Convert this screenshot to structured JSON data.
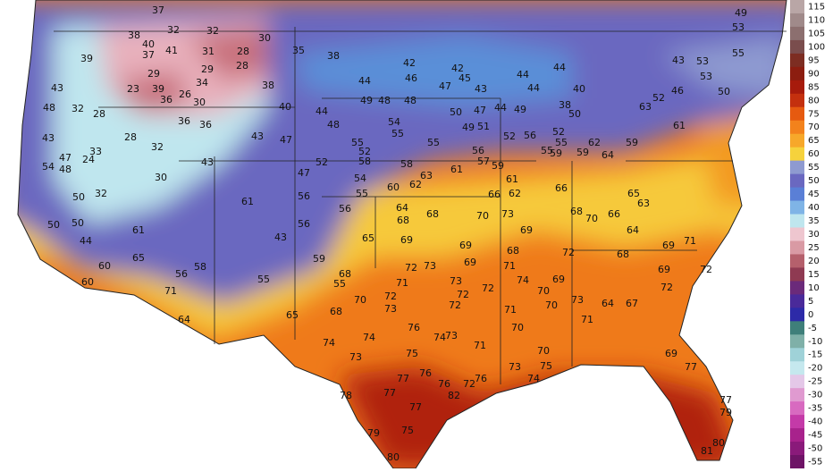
{
  "stations": [
    37,
    38,
    40,
    32,
    32,
    30,
    35,
    37,
    41,
    31,
    28,
    39,
    29,
    29,
    28,
    23,
    39,
    26,
    34,
    36,
    30,
    38,
    43,
    32,
    28,
    48,
    36,
    36,
    40,
    43,
    47,
    28,
    32,
    43,
    47,
    24,
    33,
    54,
    48,
    30,
    43,
    52,
    47,
    50,
    32,
    50,
    50,
    44,
    61,
    43,
    61,
    56,
    56,
    55,
    56,
    65,
    69,
    59,
    60,
    60,
    65,
    71,
    56,
    58,
    55,
    64,
    65,
    68,
    55,
    68,
    70,
    72,
    71,
    72,
    73,
    69,
    69,
    68,
    71,
    74,
    73,
    72,
    72,
    72,
    71,
    70,
    69,
    72,
    73,
    71,
    70,
    73,
    74,
    74,
    76,
    74,
    73,
    71,
    73,
    75,
    76,
    76,
    72,
    73,
    75,
    74,
    70,
    70,
    78,
    77,
    77,
    76,
    82,
    77,
    75,
    79,
    80,
    68,
    64,
    67,
    72,
    69,
    69,
    71,
    72,
    69,
    77,
    77,
    79,
    80,
    81,
    70,
    66,
    63,
    64,
    65,
    66,
    61,
    62,
    66,
    70,
    73,
    69,
    68,
    64,
    68,
    68,
    60,
    62,
    58,
    63,
    61,
    57,
    59,
    56,
    55,
    55,
    54,
    48,
    49,
    48,
    47,
    50,
    47,
    44,
    49,
    49,
    51,
    52,
    56,
    55,
    59,
    59,
    62,
    64,
    59,
    61,
    63,
    52,
    53,
    50,
    49,
    53,
    43,
    53,
    55,
    46,
    42,
    46,
    42,
    45,
    43,
    44,
    44,
    44,
    40,
    38,
    50,
    52,
    55,
    44,
    44,
    48,
    55,
    54,
    58,
    52,
    38
  ],
  "legend": {
    "ticks": [
      115,
      110,
      105,
      100,
      95,
      90,
      85,
      80,
      75,
      70,
      65,
      60,
      55,
      50,
      45,
      40,
      35,
      30,
      25,
      20,
      15,
      10,
      5,
      0,
      -5,
      -10,
      -15,
      -20,
      -25,
      -30,
      -35,
      -40,
      -45,
      -50,
      -55
    ],
    "colors": [
      "#b9a6a6",
      "#a08a8a",
      "#8c6f6f",
      "#7a4d4d",
      "#7d2d22",
      "#8c1d10",
      "#a71b0c",
      "#c4300e",
      "#e65a10",
      "#f3821c",
      "#f7a82a",
      "#f6d23c",
      "#8e9ad0",
      "#6a68c0",
      "#5a7fd6",
      "#7fb4e6",
      "#bfe6ee",
      "#eec6cf",
      "#d99aa4",
      "#b5606c",
      "#8f3a52",
      "#6b2a7a",
      "#4a2a9a",
      "#2d2aa8",
      "#3f7f7a",
      "#7fb0a8",
      "#9fd2d8",
      "#c5e8ee",
      "#e4c8e8",
      "#e09ad0",
      "#d86ac0",
      "#c43aa8",
      "#a8228c",
      "#8a1a7a",
      "#6e1466"
    ]
  }
}
